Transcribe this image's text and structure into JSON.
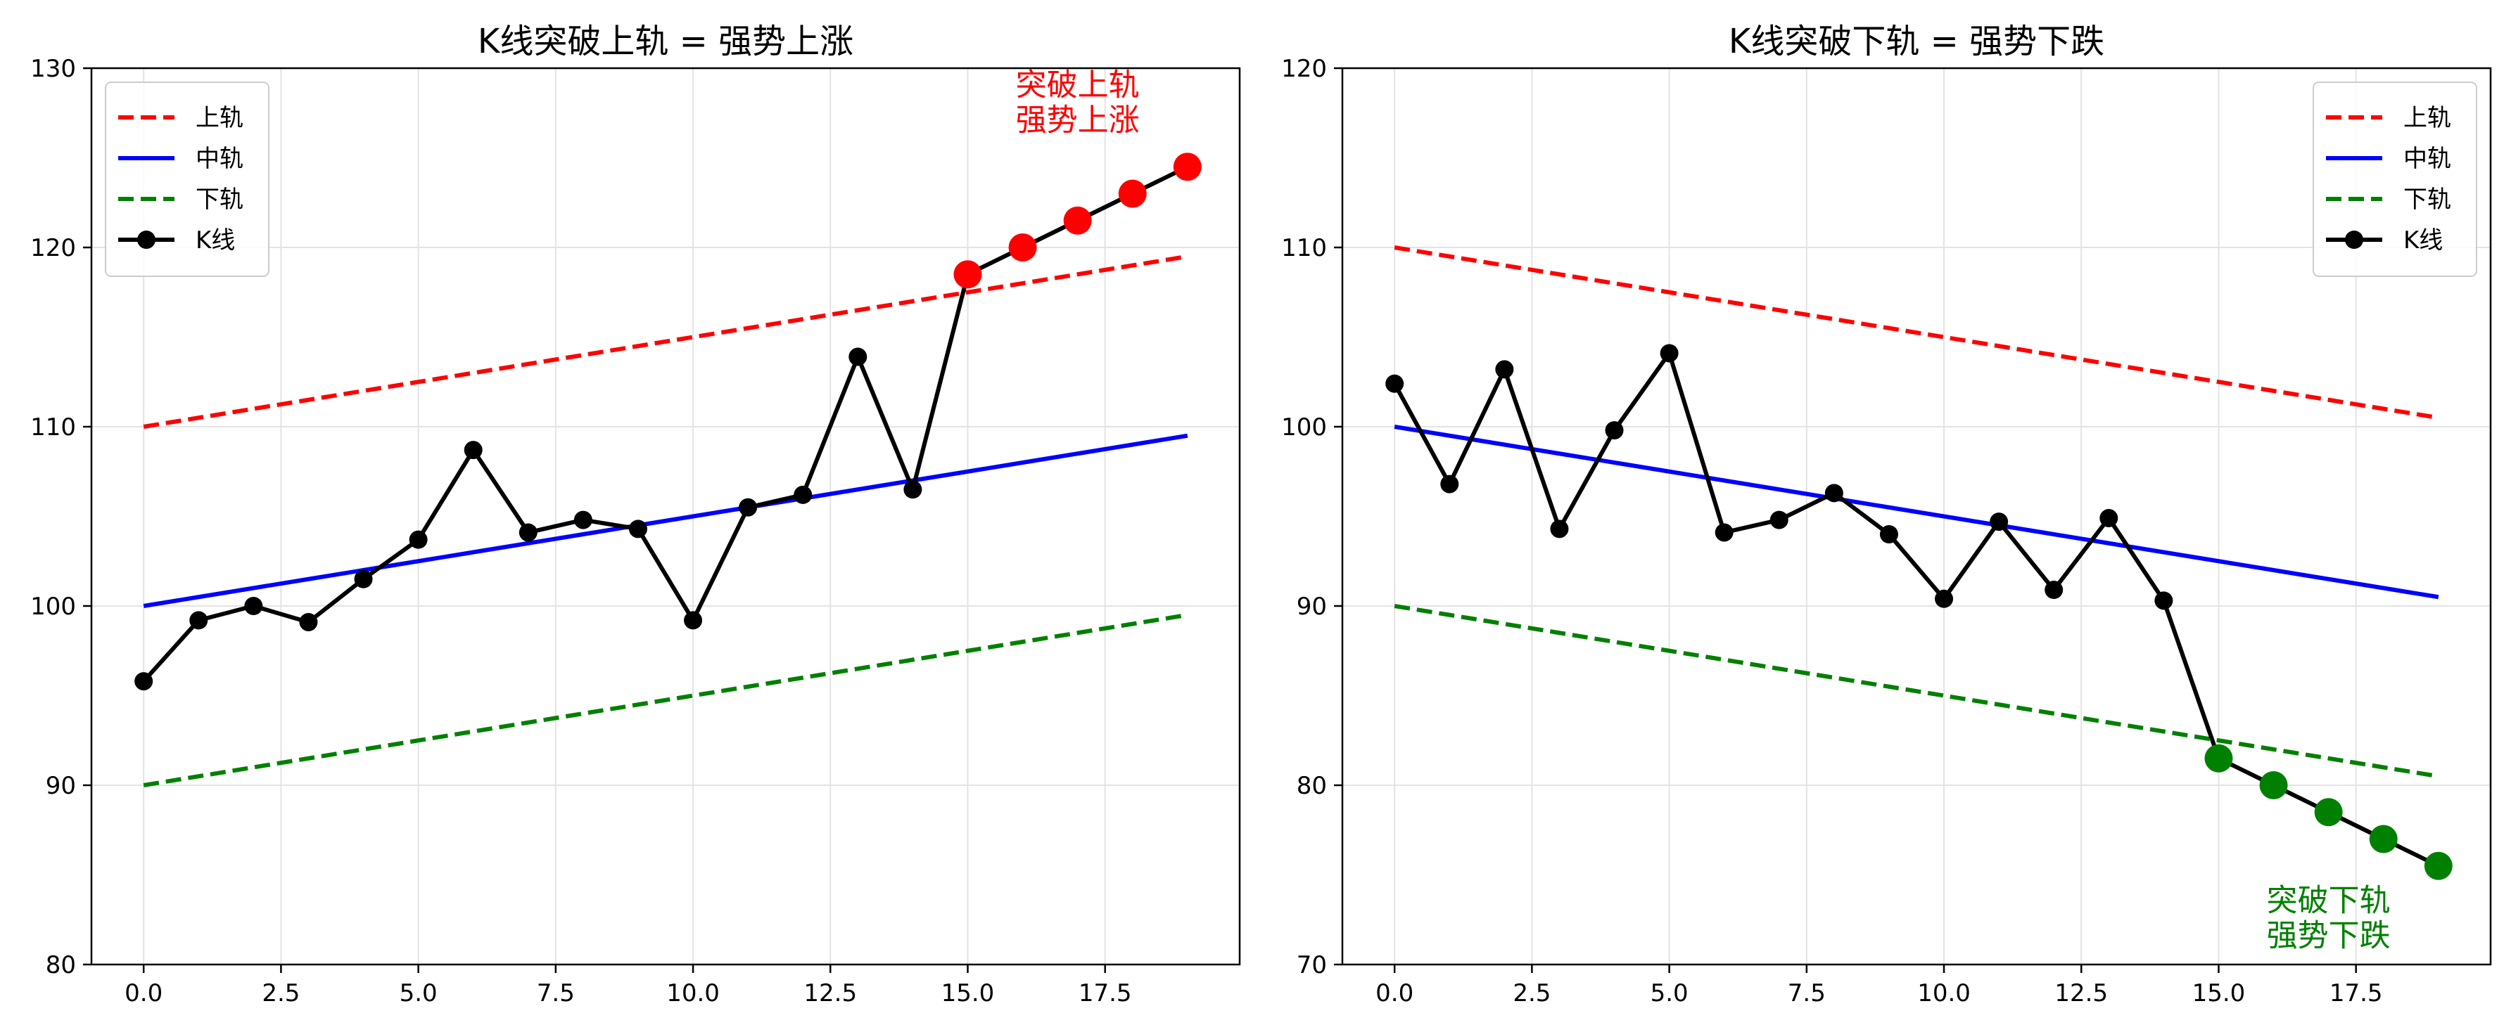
{
  "chart_data": [
    {
      "type": "line",
      "title": "K线突破上轨 = 强势上涨",
      "xlim": [
        -0.95,
        19.95
      ],
      "ylim": [
        80,
        130
      ],
      "xticks": [
        "0.0",
        "2.5",
        "5.0",
        "7.5",
        "10.0",
        "12.5",
        "15.0",
        "17.5"
      ],
      "xtick_values": [
        0,
        2.5,
        5,
        7.5,
        10,
        12.5,
        15,
        17.5
      ],
      "yticks": [
        "80",
        "90",
        "100",
        "110",
        "120",
        "130"
      ],
      "ytick_values": [
        80,
        90,
        100,
        110,
        120,
        130
      ],
      "grid": true,
      "legend_position": "top-left",
      "x": [
        0,
        1,
        2,
        3,
        4,
        5,
        6,
        7,
        8,
        9,
        10,
        11,
        12,
        13,
        14,
        15,
        16,
        17,
        18,
        19
      ],
      "series": [
        {
          "name": "上轨",
          "style": "dashed",
          "color": "#ff0000",
          "values": [
            110,
            110.5,
            111,
            111.5,
            112,
            112.5,
            113,
            113.5,
            114,
            114.5,
            115,
            115.5,
            116,
            116.5,
            117,
            117.5,
            118,
            118.5,
            119,
            119.5
          ]
        },
        {
          "name": "中轨",
          "style": "solid",
          "color": "#0000ff",
          "values": [
            100,
            100.5,
            101,
            101.5,
            102,
            102.5,
            103,
            103.5,
            104,
            104.5,
            105,
            105.5,
            106,
            106.5,
            107,
            107.5,
            108,
            108.5,
            109,
            109.5
          ]
        },
        {
          "name": "下轨",
          "style": "dashed",
          "color": "#008000",
          "values": [
            90,
            90.5,
            91,
            91.5,
            92,
            92.5,
            93,
            93.5,
            94,
            94.5,
            95,
            95.5,
            96,
            96.5,
            97,
            97.5,
            98,
            98.5,
            99,
            99.5
          ]
        },
        {
          "name": "K线",
          "style": "solid-marker",
          "color": "#000000",
          "values": [
            95.8,
            99.2,
            100,
            99.1,
            101.5,
            103.7,
            108.7,
            104.1,
            104.8,
            104.3,
            99.2,
            105.5,
            106.2,
            113.9,
            106.5,
            118.5,
            120,
            121.5,
            123,
            124.5
          ]
        }
      ],
      "highlight": {
        "color": "#ff0000",
        "x": [
          15,
          16,
          17,
          18,
          19
        ],
        "values": [
          118.5,
          120,
          121.5,
          123,
          124.5
        ]
      },
      "annotation": {
        "lines": [
          "突破上轨",
          "强势上涨"
        ],
        "color": "#ff0000",
        "x": 17,
        "y": 128.5
      }
    },
    {
      "type": "line",
      "title": "K线突破下轨 = 强势下跌",
      "xlim": [
        -0.95,
        19.95
      ],
      "ylim": [
        70,
        120
      ],
      "xticks": [
        "0.0",
        "2.5",
        "5.0",
        "7.5",
        "10.0",
        "12.5",
        "15.0",
        "17.5"
      ],
      "xtick_values": [
        0,
        2.5,
        5,
        7.5,
        10,
        12.5,
        15,
        17.5
      ],
      "yticks": [
        "70",
        "80",
        "90",
        "100",
        "110",
        "120"
      ],
      "ytick_values": [
        70,
        80,
        90,
        100,
        110,
        120
      ],
      "grid": true,
      "legend_position": "top-right",
      "x": [
        0,
        1,
        2,
        3,
        4,
        5,
        6,
        7,
        8,
        9,
        10,
        11,
        12,
        13,
        14,
        15,
        16,
        17,
        18,
        19
      ],
      "series": [
        {
          "name": "上轨",
          "style": "dashed",
          "color": "#ff0000",
          "values": [
            110,
            109.5,
            109,
            108.5,
            108,
            107.5,
            107,
            106.5,
            106,
            105.5,
            105,
            104.5,
            104,
            103.5,
            103,
            102.5,
            102,
            101.5,
            101,
            100.5
          ]
        },
        {
          "name": "中轨",
          "style": "solid",
          "color": "#0000ff",
          "values": [
            100,
            99.5,
            99,
            98.5,
            98,
            97.5,
            97,
            96.5,
            96,
            95.5,
            95,
            94.5,
            94,
            93.5,
            93,
            92.5,
            92,
            91.5,
            91,
            90.5
          ]
        },
        {
          "name": "下轨",
          "style": "dashed",
          "color": "#008000",
          "values": [
            90,
            89.5,
            89,
            88.5,
            88,
            87.5,
            87,
            86.5,
            86,
            85.5,
            85,
            84.5,
            84,
            83.5,
            83,
            82.5,
            82,
            81.5,
            81,
            80.5
          ]
        },
        {
          "name": "K线",
          "style": "solid-marker",
          "color": "#000000",
          "values": [
            102.4,
            96.8,
            103.2,
            94.3,
            99.8,
            104.1,
            94.1,
            94.8,
            96.3,
            94,
            90.4,
            94.7,
            90.9,
            94.9,
            90.3,
            81.5,
            80,
            78.5,
            77,
            75.5
          ]
        }
      ],
      "highlight": {
        "color": "#008000",
        "x": [
          15,
          16,
          17,
          18,
          19
        ],
        "values": [
          81.5,
          80,
          78.5,
          77,
          75.5
        ]
      },
      "annotation": {
        "lines": [
          "突破下轨",
          "强势下跌"
        ],
        "color": "#008000",
        "x": 17,
        "y": 73
      }
    }
  ]
}
